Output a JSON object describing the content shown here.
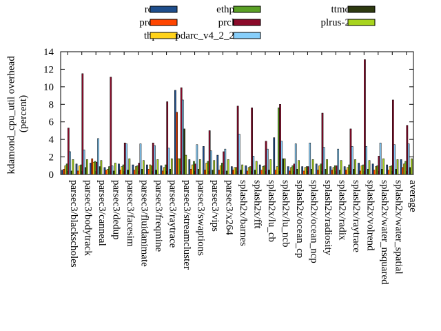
{
  "chart_data": {
    "type": "bar",
    "ylabel": "kdamond_cpu_util overhead (percent)",
    "ylabel_lines": [
      "kdamond_cpu_util overhead",
      "(percent)"
    ],
    "xlabel": "",
    "ylim": [
      0,
      14
    ],
    "yticks": [
      0,
      2,
      4,
      6,
      8,
      10,
      12,
      14
    ],
    "legend_position": "top",
    "categories": [
      "parsec3/blackscholes",
      "parsec3/bodytrack",
      "parsec3/canneal",
      "parsec3/dedup",
      "parsec3/facesim",
      "parsec3/fluidanimate",
      "parsec3/freqmine",
      "parsec3/raytrace",
      "parsec3/streamcluster",
      "parsec3/swaptions",
      "parsec3/vips",
      "parsec3/x264",
      "splash2x/barnes",
      "splash2x/fft",
      "splash2x/lu_cb",
      "splash2x/lu_ncb",
      "splash2x/ocean_cp",
      "splash2x/ocean_ncp",
      "splash2x/radiosity",
      "splash2x/radix",
      "splash2x/raytrace",
      "splash2x/volrend",
      "splash2x/water_nsquared",
      "splash2x/water_spatial",
      "average"
    ],
    "series": [
      {
        "name": "rec",
        "color": "#1f4e8c",
        "values": [
          0.5,
          1.2,
          1.3,
          0.8,
          1.2,
          1.1,
          1.1,
          1.0,
          9.6,
          1.7,
          3.2,
          2.2,
          0.9,
          1.0,
          1.1,
          4.2,
          0.9,
          0.9,
          1.2,
          0.9,
          0.9,
          1.3,
          1.2,
          1.1,
          1.7
        ]
      },
      {
        "name": "prec",
        "color": "#ff4500",
        "values": [
          0.6,
          0.4,
          1.8,
          0.5,
          0.5,
          0.5,
          0.6,
          0.4,
          7.1,
          0.6,
          0.5,
          0.5,
          0.5,
          0.4,
          0.5,
          0.5,
          0.4,
          0.4,
          0.5,
          0.5,
          0.5,
          0.4,
          0.5,
          0.5,
          0.8
        ]
      },
      {
        "name": "thp",
        "color": "#ffd21a",
        "values": [
          1.0,
          1.0,
          1.4,
          0.6,
          0.9,
          0.9,
          1.1,
          0.8,
          1.8,
          1.1,
          1.3,
          1.0,
          0.8,
          0.8,
          0.9,
          0.9,
          0.8,
          0.8,
          1.0,
          0.8,
          0.8,
          1.0,
          0.9,
          0.9,
          1.2
        ]
      },
      {
        "name": "ethp",
        "color": "#5aa025",
        "values": [
          1.2,
          1.1,
          1.5,
          0.9,
          1.1,
          1.0,
          1.0,
          1.1,
          1.8,
          1.5,
          1.5,
          1.3,
          0.8,
          0.9,
          1.0,
          7.6,
          1.0,
          0.9,
          1.2,
          1.0,
          1.1,
          1.1,
          1.0,
          1.0,
          1.5
        ]
      },
      {
        "name": "prcl",
        "color": "#8b0a2a",
        "values": [
          5.3,
          11.5,
          1.4,
          11.1,
          3.6,
          1.3,
          3.6,
          8.3,
          9.9,
          1.2,
          5.0,
          2.6,
          7.8,
          7.6,
          3.8,
          8.0,
          1.2,
          0.9,
          7.0,
          1.0,
          5.2,
          13.1,
          2.1,
          8.5,
          5.6
        ]
      },
      {
        "name": "pdarc_v4_2_2",
        "color": "#87cefa",
        "values": [
          2.6,
          2.8,
          4.1,
          1.0,
          3.5,
          3.5,
          3.3,
          3.0,
          8.5,
          3.4,
          2.7,
          2.9,
          4.6,
          2.1,
          2.9,
          3.8,
          3.5,
          3.6,
          3.1,
          2.9,
          3.2,
          3.2,
          3.6,
          3.4,
          3.5
        ]
      },
      {
        "name": "ttmo",
        "color": "#2e3a10",
        "values": [
          0.4,
          0.8,
          0.9,
          0.4,
          0.5,
          0.6,
          0.5,
          0.6,
          5.2,
          0.6,
          0.5,
          0.4,
          0.5,
          0.5,
          0.5,
          1.8,
          0.6,
          0.6,
          0.6,
          0.5,
          0.6,
          0.6,
          0.6,
          0.6,
          0.8
        ]
      },
      {
        "name": "plrus-2",
        "color": "#a8d41e",
        "values": [
          1.7,
          1.7,
          1.6,
          1.3,
          1.8,
          1.6,
          1.7,
          1.8,
          2.2,
          1.7,
          1.6,
          1.7,
          1.1,
          1.5,
          1.7,
          1.8,
          1.6,
          1.7,
          1.7,
          1.6,
          1.7,
          1.6,
          1.8,
          1.7,
          1.8
        ]
      }
    ]
  }
}
